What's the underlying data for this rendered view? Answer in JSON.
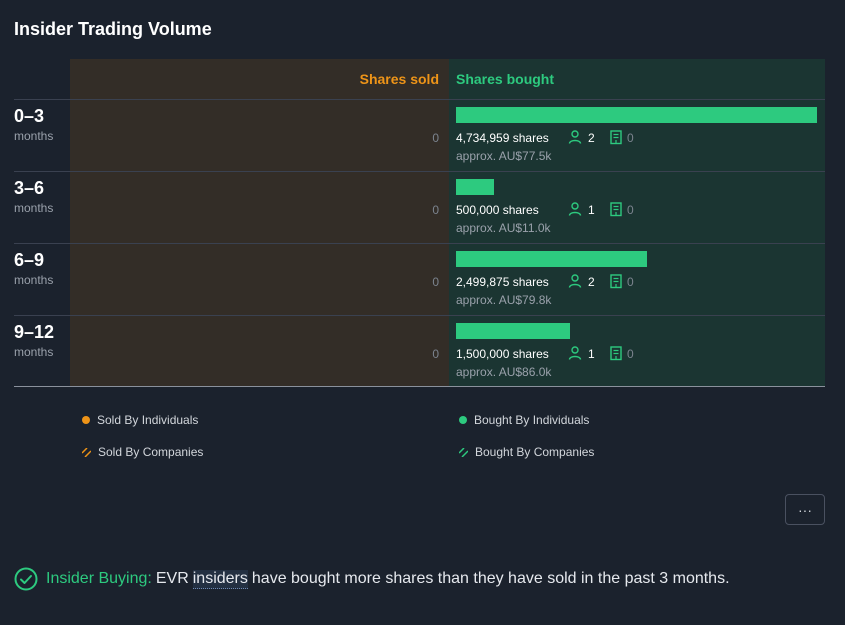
{
  "title": "Insider Trading Volume",
  "colors": {
    "sold": "#ee9418",
    "bought": "#2dca7f",
    "sold_bg": "#332d27",
    "bought_bg": "#1b3532"
  },
  "chart_data": {
    "type": "bar",
    "orientation": "horizontal-diverging",
    "series_labels": {
      "sold": "Shares sold",
      "bought": "Shares bought"
    },
    "categories": [
      {
        "label": "0–3",
        "sub": "months"
      },
      {
        "label": "3–6",
        "sub": "months"
      },
      {
        "label": "6–9",
        "sub": "months"
      },
      {
        "label": "9–12",
        "sub": "months"
      }
    ],
    "series": [
      {
        "name": "Shares sold",
        "values": [
          0,
          0,
          0,
          0
        ]
      },
      {
        "name": "Shares bought",
        "values": [
          4734959,
          500000,
          2499875,
          1500000
        ]
      }
    ],
    "rows": [
      {
        "sold_text": "0",
        "shares_text": "4,734,959 shares",
        "individuals": "2",
        "companies": "0",
        "approx": "approx. AU$77.5k"
      },
      {
        "sold_text": "0",
        "shares_text": "500,000 shares",
        "individuals": "1",
        "companies": "0",
        "approx": "approx. AU$11.0k"
      },
      {
        "sold_text": "0",
        "shares_text": "2,499,875 shares",
        "individuals": "2",
        "companies": "0",
        "approx": "approx. AU$79.8k"
      },
      {
        "sold_text": "0",
        "shares_text": "1,500,000 shares",
        "individuals": "1",
        "companies": "0",
        "approx": "approx. AU$86.0k"
      }
    ],
    "legend": {
      "sold_individuals": "Sold By Individuals",
      "sold_companies": "Sold By Companies",
      "bought_individuals": "Bought By Individuals",
      "bought_companies": "Bought By Companies"
    }
  },
  "more_button": {
    "label": "···"
  },
  "insight": {
    "lead": "Insider Buying:",
    "pre": "EVR",
    "term": "insiders",
    "post": "have bought more shares than they have sold in the past 3 months."
  },
  "icons": {
    "person": "person-icon",
    "company": "building-icon",
    "check": "check-circle-icon"
  }
}
